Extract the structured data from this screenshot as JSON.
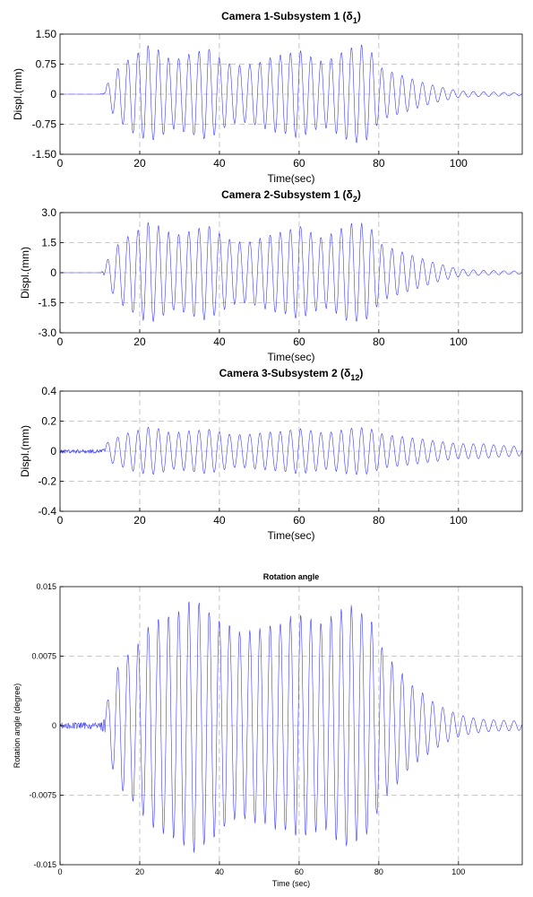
{
  "chart_data": [
    {
      "type": "line",
      "title": "Camera 1-Subsystem 1",
      "title_symbol": "δ",
      "title_subscript": "1",
      "xlabel": "Time(sec)",
      "ylabel": "Displ.(mm)",
      "xlim": [
        0,
        116
      ],
      "ylim": [
        -1.5,
        1.5
      ],
      "xticks": [
        0,
        20,
        40,
        60,
        80,
        100
      ],
      "yticks": [
        1.5,
        0.75,
        0,
        -0.75,
        -1.5
      ],
      "ytick_labels": [
        "1.50",
        "0.75",
        "0",
        "-0.75",
        "-1.50"
      ],
      "grid": true,
      "series": [
        {
          "color": "#3b3bff",
          "x": [
            0,
            10,
            11.5,
            13,
            15,
            18,
            20,
            22,
            25,
            28,
            31,
            34,
            37,
            40,
            43,
            46,
            50,
            54,
            57,
            60,
            63,
            66,
            69,
            72,
            75,
            78,
            80,
            82,
            85,
            88,
            91,
            94,
            97,
            100,
            103,
            106,
            110,
            116
          ],
          "y": [
            0,
            0,
            0.2,
            0.45,
            0.7,
            0.95,
            1.05,
            1.2,
            1.1,
            0.85,
            0.95,
            1.05,
            1.15,
            0.9,
            0.75,
            0.7,
            0.8,
            0.95,
            1.0,
            1.1,
            0.95,
            0.8,
            0.95,
            1.15,
            1.25,
            1.1,
            0.7,
            0.6,
            0.5,
            0.4,
            0.3,
            0.22,
            0.15,
            0.08,
            0.07,
            0.06,
            0.05,
            0.03
          ],
          "sign": [
            1,
            1,
            1,
            1,
            1,
            1,
            1,
            1,
            1,
            1,
            1,
            1,
            1,
            1,
            1,
            1,
            1,
            1,
            1,
            1,
            1,
            1,
            1,
            1,
            1,
            1,
            1,
            1,
            1,
            1,
            1,
            1,
            1,
            1,
            1,
            1,
            1,
            1
          ]
        }
      ]
    },
    {
      "type": "line",
      "title": "Camera 2-Subsystem 1",
      "title_symbol": "δ",
      "title_subscript": "2",
      "xlabel": "Time(sec)",
      "ylabel": "Displ.(mm)",
      "xlim": [
        0,
        116
      ],
      "ylim": [
        -3.0,
        3.0
      ],
      "xticks": [
        0,
        20,
        40,
        60,
        80,
        100
      ],
      "yticks": [
        3.0,
        1.5,
        0,
        -1.5,
        -3.0
      ],
      "ytick_labels": [
        "3.0",
        "1.5",
        "0",
        "-1.5",
        "-3.0"
      ],
      "grid": true,
      "series": [
        {
          "color": "#3b3bff",
          "x": [
            0,
            10,
            11.5,
            13,
            15,
            18,
            20,
            22,
            25,
            28,
            31,
            34,
            37,
            40,
            43,
            46,
            50,
            54,
            57,
            60,
            63,
            66,
            69,
            72,
            75,
            78,
            80,
            82,
            85,
            88,
            91,
            94,
            97,
            100,
            103,
            106,
            110,
            116
          ],
          "y": [
            0,
            0,
            0.5,
            1.0,
            1.5,
            2.0,
            2.2,
            2.5,
            2.3,
            1.9,
            2.0,
            2.2,
            2.4,
            2.0,
            1.6,
            1.5,
            1.7,
            2.0,
            2.1,
            2.4,
            2.0,
            1.7,
            2.0,
            2.4,
            2.5,
            2.3,
            1.5,
            1.3,
            1.1,
            0.9,
            0.7,
            0.5,
            0.35,
            0.2,
            0.15,
            0.12,
            0.1,
            0.08
          ]
        }
      ]
    },
    {
      "type": "line",
      "title": "Camera 3-Subsystem 2",
      "title_symbol": "δ",
      "title_subscript": "12",
      "xlabel": "Time(sec)",
      "ylabel": "Displ.(mm)",
      "xlim": [
        0,
        116
      ],
      "ylim": [
        -0.4,
        0.4
      ],
      "xticks": [
        0,
        20,
        40,
        60,
        80,
        100
      ],
      "yticks": [
        0.4,
        0.2,
        0,
        -0.2,
        -0.4
      ],
      "ytick_labels": [
        "0.4",
        "0.2",
        "0",
        "-0.2",
        "-0.4"
      ],
      "grid": true,
      "series": [
        {
          "color": "#3b3bff",
          "x": [
            0,
            10,
            11.5,
            13,
            15,
            18,
            20,
            22,
            25,
            28,
            31,
            34,
            37,
            40,
            43,
            46,
            50,
            54,
            57,
            60,
            63,
            66,
            69,
            72,
            75,
            78,
            80,
            82,
            85,
            88,
            91,
            94,
            97,
            100,
            103,
            106,
            110,
            116
          ],
          "y": [
            0.03,
            0.03,
            0.05,
            0.08,
            0.1,
            0.13,
            0.14,
            0.16,
            0.15,
            0.12,
            0.13,
            0.14,
            0.15,
            0.13,
            0.11,
            0.11,
            0.12,
            0.13,
            0.14,
            0.15,
            0.14,
            0.12,
            0.13,
            0.15,
            0.16,
            0.15,
            0.12,
            0.11,
            0.1,
            0.09,
            0.08,
            0.07,
            0.06,
            0.05,
            0.05,
            0.05,
            0.04,
            0.03
          ]
        }
      ]
    },
    {
      "type": "line",
      "title": "Rotation angle",
      "title_symbol": "",
      "title_subscript": "",
      "xlabel": "Time (sec)",
      "ylabel": "Rotation angle (degree)",
      "xlim": [
        0,
        116
      ],
      "ylim": [
        -0.015,
        0.015
      ],
      "xticks": [
        0,
        20,
        40,
        60,
        80,
        100
      ],
      "yticks": [
        0.015,
        0.0075,
        0,
        -0.0075,
        -0.015
      ],
      "ytick_labels": [
        "0.015",
        "0.0075",
        "0",
        "-0.0075",
        "-0.015"
      ],
      "grid": true,
      "series": [
        {
          "color": "#3b3bff",
          "x": [
            0,
            10,
            11.5,
            13,
            15,
            18,
            20,
            22,
            25,
            28,
            31,
            34,
            37,
            40,
            43,
            46,
            50,
            54,
            57,
            60,
            63,
            66,
            69,
            72,
            75,
            78,
            80,
            82,
            85,
            88,
            91,
            94,
            97,
            100,
            103,
            106,
            110,
            116
          ],
          "y": [
            0.0008,
            0.0008,
            0.002,
            0.0045,
            0.007,
            0.008,
            0.009,
            0.0105,
            0.0115,
            0.012,
            0.013,
            0.0135,
            0.0125,
            0.0115,
            0.0105,
            0.01,
            0.0105,
            0.011,
            0.0115,
            0.012,
            0.0115,
            0.011,
            0.012,
            0.013,
            0.0125,
            0.0115,
            0.009,
            0.0075,
            0.006,
            0.0045,
            0.0035,
            0.0025,
            0.0018,
            0.0012,
            0.0009,
            0.0007,
            0.0006,
            0.0005
          ]
        }
      ]
    }
  ]
}
